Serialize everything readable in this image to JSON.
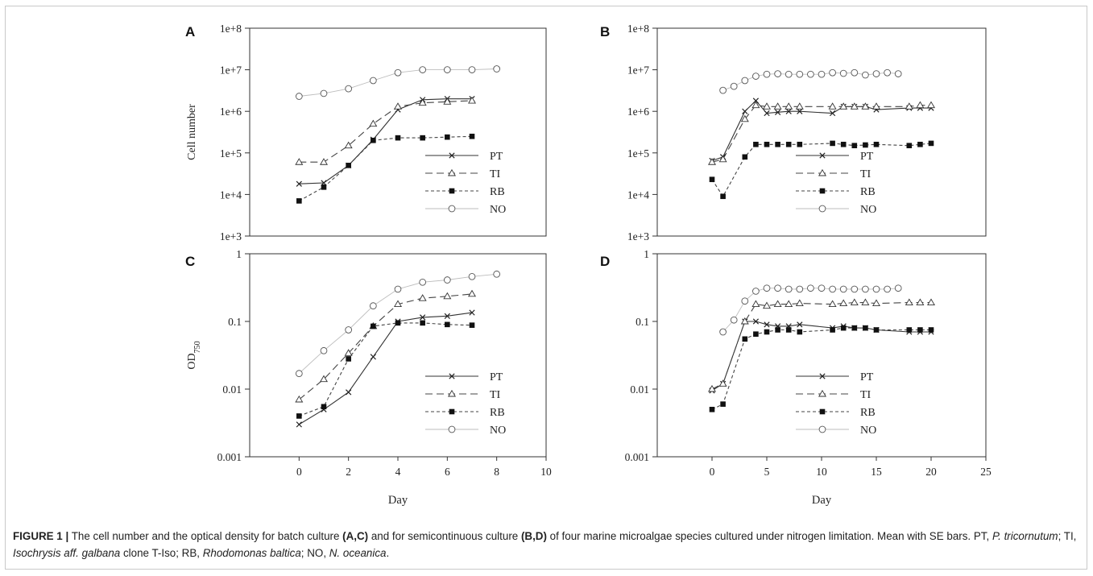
{
  "figure": {
    "caption_lead": "FIGURE 1 |",
    "caption_parts": {
      "p1": " The cell number and the optical density for batch culture ",
      "ref1": "(A,C)",
      "p2": " and for semicontinuous culture ",
      "ref2": "(B,D)",
      "p3": " of four marine microalgae species cultured under nitrogen limitation. Mean with SE bars. PT, ",
      "sp1": "P. tricornutum",
      "p4": "; TI, ",
      "sp2": "Isochrysis aff. galbana",
      "p5": " clone T-Iso; RB, ",
      "sp3": "Rhodomonas baltica",
      "p6": "; NO, ",
      "sp4": "N. oceanica",
      "p7": "."
    }
  },
  "chart_data": [
    {
      "panel": "A",
      "type": "line",
      "ylabel": "Cell number",
      "xlabel": "",
      "yscale": "log",
      "ylim": [
        1000,
        100000000
      ],
      "xlim": [
        -2,
        10
      ],
      "yticks": [
        "1e+3",
        "1e+4",
        "1e+5",
        "1e+6",
        "1e+7",
        "1e+8"
      ],
      "xticks": [],
      "legend": "bottom-right",
      "series": [
        {
          "name": "PT",
          "x": [
            0,
            1,
            2,
            3,
            4,
            5,
            6,
            7
          ],
          "y": [
            18000,
            19000,
            50000,
            210000,
            1100000,
            1900000,
            2000000,
            2000000
          ]
        },
        {
          "name": "TI",
          "x": [
            0,
            1,
            2,
            3,
            4,
            5,
            6,
            7
          ],
          "y": [
            60000,
            60000,
            150000,
            500000,
            1300000,
            1600000,
            1700000,
            1800000
          ]
        },
        {
          "name": "RB",
          "x": [
            0,
            1,
            2,
            3,
            4,
            5,
            6,
            7
          ],
          "y": [
            7000,
            15000,
            50000,
            200000,
            230000,
            230000,
            240000,
            250000
          ]
        },
        {
          "name": "NO",
          "x": [
            0,
            1,
            2,
            3,
            4,
            5,
            6,
            7,
            8
          ],
          "y": [
            2300000,
            2700000,
            3500000,
            5500000,
            8500000,
            10000000,
            10000000,
            10000000,
            10500000
          ]
        }
      ]
    },
    {
      "panel": "B",
      "type": "line",
      "ylabel": "",
      "xlabel": "",
      "yscale": "log",
      "ylim": [
        1000,
        100000000
      ],
      "xlim": [
        -5,
        25
      ],
      "yticks": [
        "1e+3",
        "1e+4",
        "1e+5",
        "1e+6",
        "1e+7",
        "1e+8"
      ],
      "xticks": [],
      "legend": "bottom-right",
      "series": [
        {
          "name": "PT",
          "x": [
            0,
            1,
            3,
            4,
            5,
            6,
            7,
            8,
            11,
            12,
            13,
            14,
            15,
            18,
            19,
            20
          ],
          "y": [
            65000,
            80000,
            1000000,
            1800000,
            900000,
            950000,
            1000000,
            1000000,
            900000,
            1300000,
            1300000,
            1300000,
            1100000,
            1200000,
            1200000,
            1200000
          ]
        },
        {
          "name": "TI",
          "x": [
            0,
            1,
            3,
            4,
            5,
            6,
            7,
            8,
            11,
            12,
            13,
            14,
            15,
            18,
            19,
            20
          ],
          "y": [
            60000,
            70000,
            650000,
            1400000,
            1300000,
            1300000,
            1300000,
            1300000,
            1300000,
            1300000,
            1300000,
            1300000,
            1300000,
            1300000,
            1400000,
            1400000
          ]
        },
        {
          "name": "RB",
          "x": [
            0,
            1,
            3,
            4,
            5,
            6,
            7,
            8,
            11,
            12,
            13,
            14,
            15,
            18,
            19,
            20
          ],
          "y": [
            23000,
            9000,
            80000,
            160000,
            160000,
            160000,
            160000,
            160000,
            170000,
            160000,
            150000,
            155000,
            160000,
            150000,
            160000,
            170000
          ]
        },
        {
          "name": "NO",
          "x": [
            1,
            2,
            3,
            4,
            5,
            6,
            7,
            8,
            9,
            10,
            11,
            12,
            13,
            14,
            15,
            16,
            17
          ],
          "y": [
            3200000,
            4000000,
            5500000,
            7000000,
            7800000,
            8000000,
            7800000,
            7800000,
            7800000,
            7800000,
            8500000,
            8200000,
            8500000,
            7500000,
            8000000,
            8500000,
            8000000
          ]
        }
      ]
    },
    {
      "panel": "C",
      "type": "line",
      "ylabel": "OD",
      "ylabel_sub": "750",
      "xlabel": "Day",
      "yscale": "log",
      "ylim": [
        0.001,
        1
      ],
      "xlim": [
        -2,
        10
      ],
      "yticks": [
        "0.001",
        "0.01",
        "0.1",
        "1"
      ],
      "xticks": [
        "0",
        "2",
        "4",
        "6",
        "8",
        "10"
      ],
      "legend": "bottom-right",
      "series": [
        {
          "name": "PT",
          "x": [
            0,
            1,
            2,
            3,
            4,
            5,
            6,
            7
          ],
          "y": [
            0.003,
            0.005,
            0.009,
            0.03,
            0.1,
            0.115,
            0.12,
            0.135
          ]
        },
        {
          "name": "TI",
          "x": [
            0,
            1,
            2,
            3,
            4,
            5,
            6,
            7
          ],
          "y": [
            0.007,
            0.014,
            0.034,
            0.085,
            0.18,
            0.22,
            0.235,
            0.255
          ]
        },
        {
          "name": "RB",
          "x": [
            0,
            1,
            2,
            3,
            4,
            5,
            6,
            7
          ],
          "y": [
            0.004,
            0.0055,
            0.028,
            0.085,
            0.095,
            0.095,
            0.09,
            0.088
          ]
        },
        {
          "name": "NO",
          "x": [
            0,
            1,
            2,
            3,
            4,
            5,
            6,
            7,
            8
          ],
          "y": [
            0.017,
            0.037,
            0.075,
            0.17,
            0.3,
            0.38,
            0.41,
            0.46,
            0.5
          ]
        }
      ]
    },
    {
      "panel": "D",
      "type": "line",
      "ylabel": "",
      "xlabel": "Day",
      "yscale": "log",
      "ylim": [
        0.001,
        1
      ],
      "xlim": [
        -5,
        25
      ],
      "yticks": [
        "0.001",
        "0.01",
        "0.1",
        "1"
      ],
      "xticks": [
        "0",
        "5",
        "10",
        "15",
        "20",
        "25"
      ],
      "legend": "bottom-right",
      "series": [
        {
          "name": "PT",
          "x": [
            0,
            1,
            3,
            4,
            5,
            6,
            7,
            8,
            11,
            12,
            13,
            14,
            15,
            18,
            19,
            20
          ],
          "y": [
            0.0095,
            0.012,
            0.1,
            0.1,
            0.09,
            0.085,
            0.085,
            0.09,
            0.08,
            0.085,
            0.08,
            0.08,
            0.075,
            0.07,
            0.07,
            0.07
          ]
        },
        {
          "name": "TI",
          "x": [
            0,
            1,
            3,
            4,
            5,
            6,
            7,
            8,
            11,
            12,
            13,
            14,
            15,
            18,
            19,
            20
          ],
          "y": [
            0.01,
            0.012,
            0.1,
            0.18,
            0.17,
            0.18,
            0.18,
            0.185,
            0.18,
            0.185,
            0.19,
            0.19,
            0.185,
            0.19,
            0.19,
            0.19
          ]
        },
        {
          "name": "RB",
          "x": [
            0,
            1,
            3,
            4,
            5,
            6,
            7,
            8,
            11,
            12,
            13,
            14,
            15,
            18,
            19,
            20
          ],
          "y": [
            0.005,
            0.006,
            0.055,
            0.065,
            0.07,
            0.075,
            0.075,
            0.07,
            0.075,
            0.08,
            0.08,
            0.08,
            0.075,
            0.075,
            0.075,
            0.075
          ]
        },
        {
          "name": "NO",
          "x": [
            1,
            2,
            3,
            4,
            5,
            6,
            7,
            8,
            9,
            10,
            11,
            12,
            13,
            14,
            15,
            16,
            17
          ],
          "y": [
            0.07,
            0.105,
            0.2,
            0.28,
            0.31,
            0.31,
            0.3,
            0.3,
            0.31,
            0.31,
            0.3,
            0.3,
            0.3,
            0.3,
            0.3,
            0.3,
            0.31
          ]
        }
      ]
    }
  ]
}
